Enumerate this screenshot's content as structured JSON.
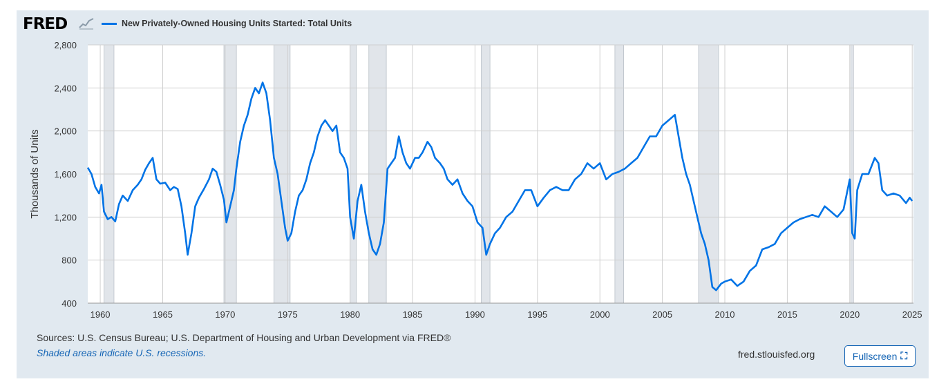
{
  "header": {
    "logo_text": "FRED",
    "logo_icon": "graph-icon",
    "series_title": "New Privately-Owned Housing Units Started: Total Units",
    "series_color": "#0073e6"
  },
  "footer": {
    "sources": "Sources: U.S. Census Bureau; U.S. Department of Housing and Urban Development via FRED®",
    "recession_note": "Shaded areas indicate U.S. recessions.",
    "site": "fred.stlouisfed.org",
    "fullscreen_label": "Fullscreen",
    "fullscreen_icon": "expand-icon"
  },
  "chart_data": {
    "type": "line",
    "title": "",
    "xlabel": "",
    "ylabel": "Thousands of Units",
    "xlim": [
      1959.0,
      2025.1
    ],
    "ylim": [
      400,
      2800
    ],
    "grid": true,
    "x_ticks": [
      "1960",
      "1965",
      "1970",
      "1975",
      "1980",
      "1985",
      "1990",
      "1995",
      "2000",
      "2005",
      "2010",
      "2015",
      "2020",
      "2025"
    ],
    "y_ticks": [
      "400",
      "800",
      "1,200",
      "1,600",
      "2,000",
      "2,400",
      "2,800"
    ],
    "recessions": [
      [
        1960.3,
        1961.1
      ],
      [
        1969.9,
        1970.9
      ],
      [
        1973.9,
        1975.2
      ],
      [
        1980.0,
        1980.5
      ],
      [
        1981.5,
        1982.9
      ],
      [
        1990.5,
        1991.2
      ],
      [
        2001.2,
        2001.9
      ],
      [
        2007.9,
        2009.5
      ],
      [
        2020.1,
        2020.3
      ]
    ],
    "series": [
      {
        "name": "New Privately-Owned Housing Units Started: Total Units",
        "color": "#0073e6",
        "points": [
          [
            1959.0,
            1660
          ],
          [
            1959.3,
            1600
          ],
          [
            1959.6,
            1480
          ],
          [
            1959.9,
            1420
          ],
          [
            1960.1,
            1500
          ],
          [
            1960.3,
            1250
          ],
          [
            1960.6,
            1180
          ],
          [
            1960.9,
            1200
          ],
          [
            1961.2,
            1160
          ],
          [
            1961.5,
            1320
          ],
          [
            1961.8,
            1400
          ],
          [
            1962.2,
            1350
          ],
          [
            1962.6,
            1450
          ],
          [
            1963.0,
            1500
          ],
          [
            1963.3,
            1550
          ],
          [
            1963.6,
            1640
          ],
          [
            1963.9,
            1700
          ],
          [
            1964.2,
            1750
          ],
          [
            1964.5,
            1550
          ],
          [
            1964.8,
            1510
          ],
          [
            1965.2,
            1520
          ],
          [
            1965.6,
            1450
          ],
          [
            1965.9,
            1480
          ],
          [
            1966.2,
            1460
          ],
          [
            1966.5,
            1300
          ],
          [
            1966.8,
            1050
          ],
          [
            1967.0,
            850
          ],
          [
            1967.3,
            1050
          ],
          [
            1967.6,
            1300
          ],
          [
            1967.9,
            1380
          ],
          [
            1968.3,
            1460
          ],
          [
            1968.7,
            1550
          ],
          [
            1969.0,
            1650
          ],
          [
            1969.3,
            1620
          ],
          [
            1969.6,
            1500
          ],
          [
            1969.9,
            1360
          ],
          [
            1970.1,
            1150
          ],
          [
            1970.4,
            1300
          ],
          [
            1970.7,
            1450
          ],
          [
            1970.9,
            1650
          ],
          [
            1971.2,
            1900
          ],
          [
            1971.5,
            2050
          ],
          [
            1971.8,
            2150
          ],
          [
            1972.1,
            2300
          ],
          [
            1972.4,
            2400
          ],
          [
            1972.7,
            2350
          ],
          [
            1973.0,
            2450
          ],
          [
            1973.3,
            2350
          ],
          [
            1973.6,
            2100
          ],
          [
            1973.9,
            1750
          ],
          [
            1974.2,
            1600
          ],
          [
            1974.5,
            1350
          ],
          [
            1974.8,
            1100
          ],
          [
            1975.0,
            980
          ],
          [
            1975.3,
            1050
          ],
          [
            1975.6,
            1250
          ],
          [
            1975.9,
            1400
          ],
          [
            1976.2,
            1450
          ],
          [
            1976.5,
            1550
          ],
          [
            1976.8,
            1700
          ],
          [
            1977.1,
            1800
          ],
          [
            1977.4,
            1950
          ],
          [
            1977.7,
            2050
          ],
          [
            1978.0,
            2100
          ],
          [
            1978.3,
            2050
          ],
          [
            1978.6,
            2000
          ],
          [
            1978.9,
            2050
          ],
          [
            1979.2,
            1800
          ],
          [
            1979.5,
            1750
          ],
          [
            1979.8,
            1650
          ],
          [
            1980.0,
            1200
          ],
          [
            1980.3,
            1000
          ],
          [
            1980.6,
            1350
          ],
          [
            1980.9,
            1500
          ],
          [
            1981.2,
            1250
          ],
          [
            1981.5,
            1050
          ],
          [
            1981.8,
            900
          ],
          [
            1982.1,
            850
          ],
          [
            1982.4,
            950
          ],
          [
            1982.7,
            1150
          ],
          [
            1983.0,
            1650
          ],
          [
            1983.3,
            1700
          ],
          [
            1983.6,
            1750
          ],
          [
            1983.9,
            1950
          ],
          [
            1984.2,
            1800
          ],
          [
            1984.5,
            1700
          ],
          [
            1984.8,
            1650
          ],
          [
            1985.2,
            1750
          ],
          [
            1985.5,
            1750
          ],
          [
            1985.8,
            1800
          ],
          [
            1986.2,
            1900
          ],
          [
            1986.5,
            1850
          ],
          [
            1986.8,
            1750
          ],
          [
            1987.2,
            1700
          ],
          [
            1987.5,
            1650
          ],
          [
            1987.8,
            1550
          ],
          [
            1988.2,
            1500
          ],
          [
            1988.6,
            1550
          ],
          [
            1989.0,
            1420
          ],
          [
            1989.4,
            1350
          ],
          [
            1989.8,
            1300
          ],
          [
            1990.2,
            1150
          ],
          [
            1990.6,
            1100
          ],
          [
            1990.9,
            850
          ],
          [
            1991.2,
            950
          ],
          [
            1991.6,
            1050
          ],
          [
            1992.0,
            1100
          ],
          [
            1992.5,
            1200
          ],
          [
            1993.0,
            1250
          ],
          [
            1993.5,
            1350
          ],
          [
            1994.0,
            1450
          ],
          [
            1994.5,
            1450
          ],
          [
            1995.0,
            1300
          ],
          [
            1995.5,
            1380
          ],
          [
            1996.0,
            1450
          ],
          [
            1996.5,
            1480
          ],
          [
            1997.0,
            1450
          ],
          [
            1997.5,
            1450
          ],
          [
            1998.0,
            1550
          ],
          [
            1998.5,
            1600
          ],
          [
            1999.0,
            1700
          ],
          [
            1999.5,
            1650
          ],
          [
            2000.0,
            1700
          ],
          [
            2000.5,
            1550
          ],
          [
            2001.0,
            1600
          ],
          [
            2001.5,
            1620
          ],
          [
            2002.0,
            1650
          ],
          [
            2002.5,
            1700
          ],
          [
            2003.0,
            1750
          ],
          [
            2003.5,
            1850
          ],
          [
            2004.0,
            1950
          ],
          [
            2004.5,
            1950
          ],
          [
            2005.0,
            2050
          ],
          [
            2005.5,
            2100
          ],
          [
            2006.0,
            2150
          ],
          [
            2006.3,
            1950
          ],
          [
            2006.6,
            1750
          ],
          [
            2006.9,
            1600
          ],
          [
            2007.2,
            1500
          ],
          [
            2007.5,
            1350
          ],
          [
            2007.8,
            1200
          ],
          [
            2008.1,
            1050
          ],
          [
            2008.4,
            950
          ],
          [
            2008.7,
            800
          ],
          [
            2009.0,
            550
          ],
          [
            2009.3,
            520
          ],
          [
            2009.7,
            580
          ],
          [
            2010.0,
            600
          ],
          [
            2010.5,
            620
          ],
          [
            2011.0,
            560
          ],
          [
            2011.5,
            600
          ],
          [
            2012.0,
            700
          ],
          [
            2012.5,
            750
          ],
          [
            2013.0,
            900
          ],
          [
            2013.5,
            920
          ],
          [
            2014.0,
            950
          ],
          [
            2014.5,
            1050
          ],
          [
            2015.0,
            1100
          ],
          [
            2015.5,
            1150
          ],
          [
            2016.0,
            1180
          ],
          [
            2016.5,
            1200
          ],
          [
            2017.0,
            1220
          ],
          [
            2017.5,
            1200
          ],
          [
            2018.0,
            1300
          ],
          [
            2018.5,
            1250
          ],
          [
            2019.0,
            1200
          ],
          [
            2019.5,
            1270
          ],
          [
            2020.0,
            1550
          ],
          [
            2020.2,
            1050
          ],
          [
            2020.4,
            1000
          ],
          [
            2020.6,
            1450
          ],
          [
            2021.0,
            1600
          ],
          [
            2021.5,
            1600
          ],
          [
            2022.0,
            1750
          ],
          [
            2022.3,
            1700
          ],
          [
            2022.6,
            1450
          ],
          [
            2023.0,
            1400
          ],
          [
            2023.5,
            1420
          ],
          [
            2024.0,
            1400
          ],
          [
            2024.5,
            1330
          ],
          [
            2024.8,
            1380
          ],
          [
            2025.0,
            1350
          ]
        ]
      }
    ]
  }
}
